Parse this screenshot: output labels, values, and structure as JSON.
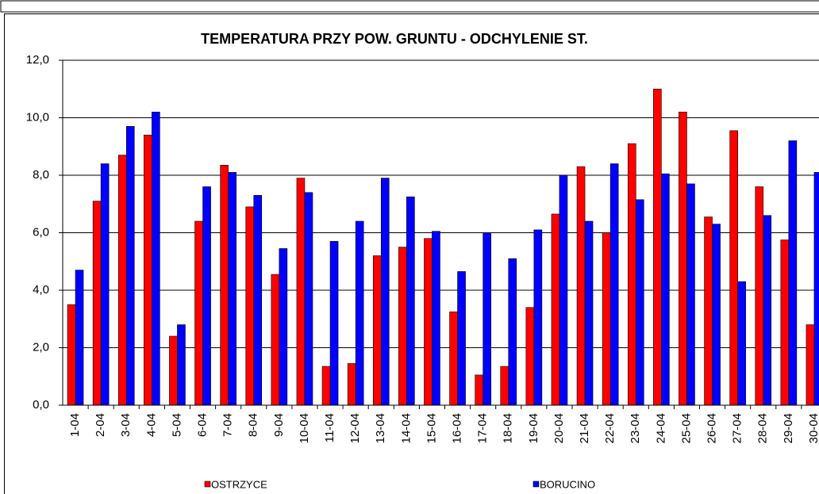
{
  "chart_data": {
    "type": "bar",
    "title": "TEMPERATURA PRZY POW. GRUNTU - ODCHYLENIE ST.",
    "categories": [
      "1-04",
      "2-04",
      "3-04",
      "4-04",
      "5-04",
      "6-04",
      "7-04",
      "8-04",
      "9-04",
      "10-04",
      "11-04",
      "12-04",
      "13-04",
      "14-04",
      "15-04",
      "16-04",
      "17-04",
      "18-04",
      "19-04",
      "20-04",
      "21-04",
      "22-04",
      "23-04",
      "24-04",
      "25-04",
      "26-04",
      "27-04",
      "28-04",
      "29-04",
      "30-04"
    ],
    "series": [
      {
        "name": "OSTRZYCE",
        "color": "#ff0000",
        "values": [
          3.5,
          7.1,
          8.7,
          9.4,
          2.4,
          6.4,
          8.35,
          6.9,
          4.55,
          7.9,
          1.35,
          1.45,
          5.2,
          5.5,
          5.8,
          3.25,
          1.05,
          1.35,
          3.4,
          6.65,
          8.3,
          6.0,
          9.1,
          11.0,
          10.2,
          6.55,
          9.55,
          7.6,
          5.75,
          2.8
        ]
      },
      {
        "name": "BORUCINO",
        "color": "#0000ff",
        "values": [
          4.7,
          8.4,
          9.7,
          10.2,
          2.8,
          7.6,
          8.1,
          7.3,
          5.45,
          7.4,
          5.7,
          6.4,
          7.9,
          7.25,
          6.05,
          4.65,
          6.0,
          5.1,
          6.1,
          8.0,
          6.4,
          8.4,
          7.15,
          8.05,
          7.7,
          6.3,
          4.3,
          6.6,
          9.2,
          8.1
        ]
      }
    ],
    "ylim": [
      0,
      12
    ],
    "yticks": [
      {
        "value": 0,
        "label": "0,0"
      },
      {
        "value": 2,
        "label": "2,0"
      },
      {
        "value": 4,
        "label": "4,0"
      },
      {
        "value": 6,
        "label": "6,0"
      },
      {
        "value": 8,
        "label": "8,0"
      },
      {
        "value": 10,
        "label": "10,0"
      },
      {
        "value": 12,
        "label": "12,0"
      }
    ],
    "grid": true,
    "legend": "bottom"
  }
}
